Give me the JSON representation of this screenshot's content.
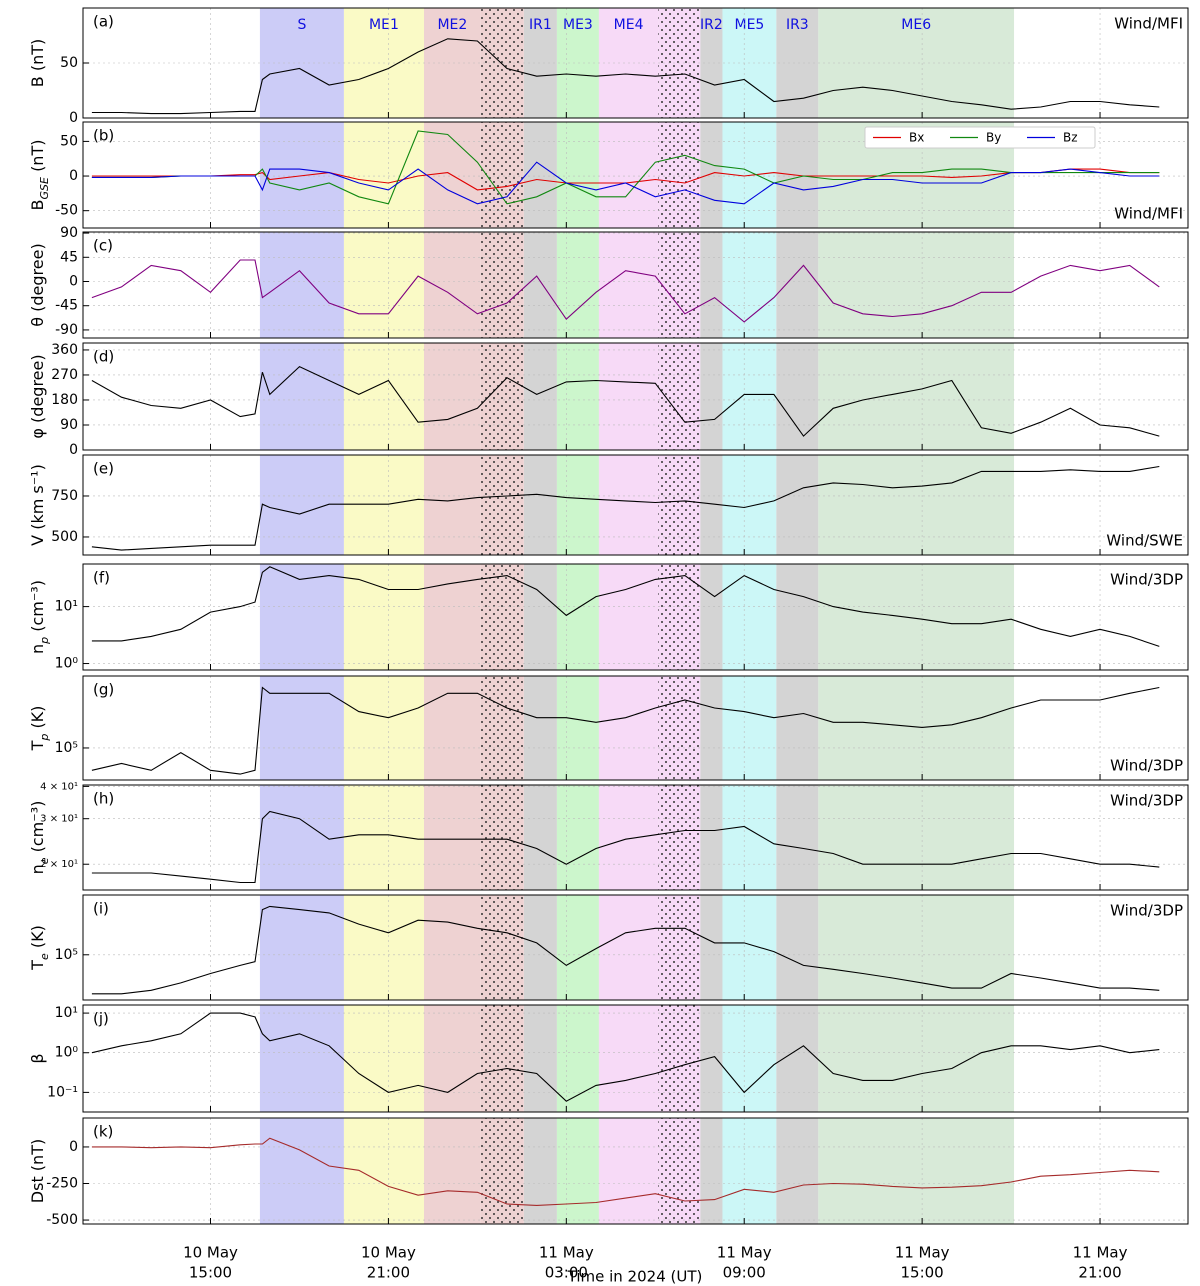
{
  "chart_data": {
    "type": "line",
    "xlabel": "Time in 2024 (UT)",
    "xlim": [
      "2024-05-10T10:42",
      "2024-05-11T23:58"
    ],
    "xticks": [
      {
        "value": "2024-05-10T15:00",
        "label": [
          "10 May",
          "15:00"
        ]
      },
      {
        "value": "2024-05-10T21:00",
        "label": [
          "10 May",
          "21:00"
        ]
      },
      {
        "value": "2024-05-11T03:00",
        "label": [
          "11 May",
          "03:00"
        ]
      },
      {
        "value": "2024-05-11T09:00",
        "label": [
          "11 May",
          "09:00"
        ]
      },
      {
        "value": "2024-05-11T15:00",
        "label": [
          "11 May",
          "15:00"
        ]
      },
      {
        "value": "2024-05-11T21:00",
        "label": [
          "11 May",
          "21:00"
        ]
      }
    ],
    "grid": true,
    "regions": [
      {
        "name": "S",
        "color": "#ccccf7",
        "start": "2024-05-10T16:40",
        "end": "2024-05-10T19:30"
      },
      {
        "name": "ME1",
        "color": "#fafac6",
        "start": "2024-05-10T19:30",
        "end": "2024-05-10T22:12"
      },
      {
        "name": "ME2",
        "color": "#eed2d2",
        "start": "2024-05-10T22:12",
        "end": "2024-05-11T00:07"
      },
      {
        "name": "IR1",
        "color": "#d4d4d4",
        "start": "2024-05-11T01:34",
        "end": "2024-05-11T02:41"
      },
      {
        "name": "ME3",
        "color": "#ccf6cc",
        "start": "2024-05-11T02:41",
        "end": "2024-05-11T04:06"
      },
      {
        "name": "ME4",
        "color": "#f7daf7",
        "start": "2024-05-11T04:06",
        "end": "2024-05-11T06:06"
      },
      {
        "name": "IR2",
        "color": "#d4d4d4",
        "start": "2024-05-11T07:31",
        "end": "2024-05-11T08:16"
      },
      {
        "name": "ME5",
        "color": "#ccf7f7",
        "start": "2024-05-11T08:16",
        "end": "2024-05-11T10:05"
      },
      {
        "name": "IR3",
        "color": "#d4d4d4",
        "start": "2024-05-11T10:05",
        "end": "2024-05-11T11:30"
      },
      {
        "name": "ME6",
        "color": "#d8eAd8",
        "start": "2024-05-11T11:30",
        "end": "2024-05-11T18:06"
      }
    ],
    "region_label_color": "#1010e0",
    "hatched": [
      {
        "color": "#eed2d2",
        "start": "2024-05-11T00:07",
        "end": "2024-05-11T01:34"
      },
      {
        "color": "#f7daf7",
        "start": "2024-05-11T06:06",
        "end": "2024-05-11T07:31"
      }
    ],
    "x": [
      "2024-05-10T11:00",
      "2024-05-10T12:00",
      "2024-05-10T13:00",
      "2024-05-10T14:00",
      "2024-05-10T15:00",
      "2024-05-10T16:00",
      "2024-05-10T16:30",
      "2024-05-10T16:45",
      "2024-05-10T17:00",
      "2024-05-10T18:00",
      "2024-05-10T19:00",
      "2024-05-10T20:00",
      "2024-05-10T21:00",
      "2024-05-10T22:00",
      "2024-05-10T23:00",
      "2024-05-11T00:00",
      "2024-05-11T01:00",
      "2024-05-11T02:00",
      "2024-05-11T03:00",
      "2024-05-11T04:00",
      "2024-05-11T05:00",
      "2024-05-11T06:00",
      "2024-05-11T07:00",
      "2024-05-11T08:00",
      "2024-05-11T09:00",
      "2024-05-11T10:00",
      "2024-05-11T11:00",
      "2024-05-11T12:00",
      "2024-05-11T13:00",
      "2024-05-11T14:00",
      "2024-05-11T15:00",
      "2024-05-11T16:00",
      "2024-05-11T17:00",
      "2024-05-11T18:00",
      "2024-05-11T19:00",
      "2024-05-11T20:00",
      "2024-05-11T21:00",
      "2024-05-11T22:00",
      "2024-05-11T23:00"
    ],
    "panels": [
      {
        "label": "(a)",
        "ylabel": [
          "B (nT)"
        ],
        "ylim": [
          0,
          100
        ],
        "yticks": [
          0,
          50
        ],
        "log": false,
        "source": "Wind/MFI",
        "source_corner": "top",
        "series": [
          {
            "color": "#000000",
            "values": [
              5,
              5,
              4,
              4,
              5,
              6,
              6,
              35,
              40,
              45,
              30,
              35,
              45,
              60,
              72,
              70,
              45,
              38,
              40,
              38,
              40,
              38,
              40,
              30,
              35,
              15,
              18,
              25,
              28,
              25,
              20,
              15,
              12,
              8,
              10,
              15,
              15,
              12,
              10
            ]
          }
        ]
      },
      {
        "label": "(b)",
        "ylabel": [
          "B",
          "GSE",
          " (nT)"
        ],
        "ylim": [
          -75,
          78
        ],
        "yticks": [
          -50,
          0,
          50
        ],
        "log": false,
        "source": "Wind/MFI",
        "source_corner": "bottom",
        "legend": "top-right",
        "series": [
          {
            "name": "Bx",
            "color": "#e00000",
            "values": [
              0,
              0,
              0,
              0,
              0,
              2,
              2,
              5,
              -5,
              0,
              5,
              -5,
              -10,
              0,
              5,
              -20,
              -15,
              -5,
              -10,
              -10,
              -10,
              -5,
              -10,
              5,
              0,
              5,
              0,
              0,
              0,
              0,
              0,
              -2,
              0,
              5,
              5,
              10,
              10,
              5,
              5
            ]
          },
          {
            "name": "By",
            "color": "#118811",
            "values": [
              -2,
              -2,
              -2,
              0,
              0,
              0,
              0,
              10,
              -10,
              -20,
              -10,
              -30,
              -40,
              65,
              60,
              20,
              -40,
              -30,
              -10,
              -30,
              -30,
              20,
              30,
              15,
              10,
              -10,
              0,
              -5,
              -5,
              5,
              5,
              10,
              10,
              5,
              5,
              5,
              5,
              5,
              5
            ]
          },
          {
            "name": "Bz",
            "color": "#0000dd",
            "values": [
              -2,
              -2,
              -2,
              0,
              0,
              0,
              0,
              -20,
              10,
              10,
              5,
              -10,
              -20,
              10,
              -20,
              -40,
              -30,
              20,
              -10,
              -20,
              -10,
              -30,
              -20,
              -35,
              -40,
              -10,
              -20,
              -15,
              -5,
              -5,
              -10,
              -10,
              -10,
              5,
              5,
              10,
              5,
              0,
              0
            ]
          }
        ]
      },
      {
        "label": "(c)",
        "ylabel": [
          "θ (degree)"
        ],
        "ylim": [
          -105,
          92
        ],
        "yticks": [
          -90,
          -45,
          0,
          45,
          90
        ],
        "log": false,
        "series": [
          {
            "color": "#800080",
            "values": [
              -30,
              -10,
              30,
              20,
              -20,
              40,
              40,
              -30,
              -20,
              20,
              -40,
              -60,
              -60,
              10,
              -20,
              -60,
              -40,
              10,
              -70,
              -20,
              20,
              10,
              -60,
              -30,
              -75,
              -30,
              30,
              -40,
              -60,
              -65,
              -60,
              -45,
              -20,
              -20,
              10,
              30,
              20,
              30,
              -10
            ]
          }
        ]
      },
      {
        "label": "(d)",
        "ylabel": [
          "φ (degree)"
        ],
        "ylim": [
          0,
          385
        ],
        "yticks": [
          0,
          90,
          180,
          270,
          360
        ],
        "log": false,
        "series": [
          {
            "color": "#000000",
            "values": [
              250,
              190,
              160,
              150,
              180,
              120,
              130,
              280,
              200,
              300,
              250,
              200,
              250,
              100,
              110,
              150,
              260,
              200,
              245,
              250,
              245,
              240,
              100,
              110,
              200,
              200,
              50,
              150,
              180,
              200,
              220,
              250,
              80,
              60,
              100,
              150,
              90,
              80,
              50
            ]
          }
        ]
      },
      {
        "label": "(e)",
        "ylabel": [
          "V (km s⁻¹)"
        ],
        "ylim": [
          390,
          1000
        ],
        "yticks": [
          500,
          750
        ],
        "log": false,
        "source": "Wind/SWE",
        "source_corner": "bottom",
        "series": [
          {
            "color": "#000000",
            "values": [
              440,
              420,
              430,
              440,
              450,
              450,
              450,
              700,
              680,
              640,
              700,
              700,
              700,
              730,
              720,
              740,
              750,
              760,
              740,
              730,
              720,
              710,
              720,
              700,
              680,
              720,
              800,
              830,
              820,
              800,
              810,
              830,
              900,
              900,
              900,
              910,
              900,
              900,
              930
            ]
          }
        ]
      },
      {
        "label": "(f)",
        "ylabel": [
          "n",
          "p",
          " (cm⁻³)"
        ],
        "ylim": [
          0.77,
          56
        ],
        "yticks": [
          {
            "value": 1,
            "label": "10⁰"
          },
          {
            "value": 10,
            "label": "10¹"
          }
        ],
        "log": true,
        "source": "Wind/3DP",
        "source_corner": "top",
        "series": [
          {
            "color": "#000000",
            "values": [
              2.5,
              2.5,
              3,
              4,
              8,
              10,
              12,
              40,
              50,
              30,
              35,
              30,
              20,
              20,
              25,
              30,
              35,
              20,
              7,
              15,
              20,
              30,
              35,
              15,
              35,
              20,
              15,
              10,
              8,
              7,
              6,
              5,
              5,
              6,
              4,
              3,
              4,
              3,
              2
            ]
          }
        ]
      },
      {
        "label": "(g)",
        "ylabel": [
          "T",
          "p",
          " (K)"
        ],
        "ylim": [
          48000,
          520000
        ],
        "yticks": [
          {
            "value": 100000,
            "label": "10⁵"
          }
        ],
        "log": true,
        "source": "Wind/3DP",
        "source_corner": "bottom",
        "series": [
          {
            "color": "#000000",
            "values": [
              60000,
              70000,
              60000,
              90000,
              60000,
              55000,
              60000,
              400000,
              350000,
              350000,
              350000,
              230000,
              200000,
              250000,
              350000,
              350000,
              250000,
              200000,
              200000,
              180000,
              200000,
              250000,
              300000,
              250000,
              230000,
              200000,
              220000,
              180000,
              180000,
              170000,
              160000,
              170000,
              200000,
              250000,
              300000,
              300000,
              300000,
              350000,
              400000
            ]
          }
        ]
      },
      {
        "label": "(h)",
        "ylabel": [
          "n",
          "e",
          " (cm⁻³)"
        ],
        "ylim": [
          15.9,
          40.5
        ],
        "yticks": [
          {
            "value": 20,
            "label": "2 × 10¹"
          },
          {
            "value": 30,
            "label": "3 × 10¹"
          },
          {
            "value": 40,
            "label": "4 × 10¹"
          }
        ],
        "log": true,
        "source": "Wind/3DP",
        "source_corner": "top",
        "series": [
          {
            "color": "#000000",
            "values": [
              18.5,
              18.5,
              18.5,
              18,
              17.5,
              17,
              17,
              30,
              32,
              30,
              25,
              26,
              26,
              25,
              25,
              25,
              25,
              23,
              20,
              23,
              25,
              26,
              27,
              27,
              28,
              24,
              23,
              22,
              20,
              20,
              20,
              20,
              21,
              22,
              22,
              21,
              20,
              20,
              19.5
            ]
          }
        ]
      },
      {
        "label": "(i)",
        "ylabel": [
          "T",
          "e",
          " (K)"
        ],
        "ylim": [
          50000,
          250000
        ],
        "yticks": [
          {
            "value": 100000,
            "label": "10⁵"
          }
        ],
        "log": true,
        "source": "Wind/3DP",
        "source_corner": "top",
        "series": [
          {
            "color": "#000000",
            "values": [
              55000,
              55000,
              58000,
              65000,
              75000,
              85000,
              90000,
              200000,
              210000,
              200000,
              190000,
              160000,
              140000,
              170000,
              165000,
              150000,
              140000,
              120000,
              85000,
              110000,
              140000,
              150000,
              150000,
              120000,
              120000,
              105000,
              85000,
              80000,
              75000,
              70000,
              65000,
              60000,
              60000,
              75000,
              70000,
              65000,
              60000,
              60000,
              58000
            ]
          }
        ]
      },
      {
        "label": "(j)",
        "ylabel": [
          "β"
        ],
        "ylim": [
          0.032,
          16
        ],
        "yticks": [
          {
            "value": 0.1,
            "label": "10⁻¹"
          },
          {
            "value": 1,
            "label": "10⁰"
          },
          {
            "value": 10,
            "label": "10¹"
          }
        ],
        "log": true,
        "series": [
          {
            "color": "#000000",
            "values": [
              1,
              1.5,
              2,
              3,
              10,
              10,
              8,
              3,
              2,
              3,
              1.5,
              0.3,
              0.1,
              0.15,
              0.1,
              0.3,
              0.4,
              0.3,
              0.06,
              0.15,
              0.2,
              0.3,
              0.5,
              0.8,
              0.1,
              0.5,
              1.5,
              0.3,
              0.2,
              0.2,
              0.3,
              0.4,
              1,
              1.5,
              1.5,
              1.2,
              1.5,
              1,
              1.2
            ]
          }
        ]
      },
      {
        "label": "(k)",
        "ylabel": [
          "Dst (nT)"
        ],
        "ylim": [
          -527,
          198
        ],
        "yticks": [
          -500,
          -250,
          0
        ],
        "log": false,
        "series": [
          {
            "color": "#a52a2a",
            "values": [
              0,
              0,
              -5,
              0,
              -5,
              15,
              20,
              20,
              60,
              -20,
              -130,
              -160,
              -270,
              -330,
              -300,
              -310,
              -390,
              -400,
              -390,
              -380,
              -350,
              -320,
              -370,
              -360,
              -290,
              -310,
              -260,
              -250,
              -255,
              -270,
              -280,
              -275,
              -265,
              -240,
              -200,
              -190,
              -175,
              -160,
              -170
            ]
          }
        ]
      }
    ]
  }
}
